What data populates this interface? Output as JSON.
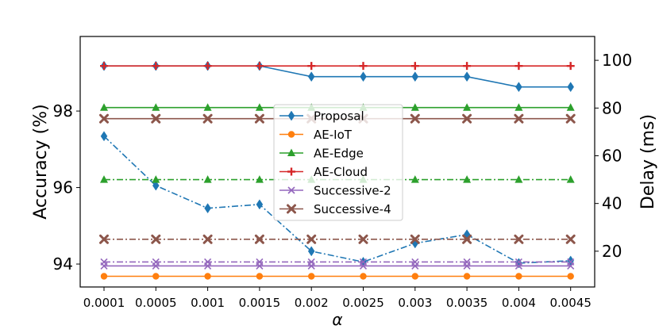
{
  "chart_data": {
    "type": "line",
    "title": "",
    "xlabel": "α",
    "ylabel": "Accuracy (%)",
    "ylabel_right": "Delay (ms)",
    "categories": [
      "0.0001",
      "0.0005",
      "0.001",
      "0.0015",
      "0.002",
      "0.0025",
      "0.003",
      "0.0035",
      "0.004",
      "0.0045"
    ],
    "left_axis": {
      "ylim": [
        93.4,
        99.95
      ],
      "ticks": [
        94,
        96,
        98
      ]
    },
    "right_axis": {
      "ylim": [
        5,
        110
      ],
      "ticks": [
        20,
        40,
        60,
        80,
        100
      ]
    },
    "legend_position": "center",
    "series": [
      {
        "name": "Proposal",
        "color": "#1f77b4",
        "marker": "diamond",
        "axis": "left",
        "linestyle": "solid",
        "values": [
          99.18,
          99.18,
          99.18,
          99.18,
          98.9,
          98.9,
          98.9,
          98.9,
          98.63,
          98.63
        ]
      },
      {
        "name": "AE-IoT",
        "color": "#ff7f0e",
        "marker": "circle",
        "axis": "left",
        "linestyle": "solid",
        "values": [
          93.68,
          93.68,
          93.68,
          93.68,
          93.68,
          93.68,
          93.68,
          93.68,
          93.68,
          93.68
        ]
      },
      {
        "name": "AE-Edge",
        "color": "#2ca02c",
        "marker": "triangle",
        "axis": "left",
        "linestyle": "solid",
        "values": [
          98.09,
          98.09,
          98.09,
          98.09,
          98.09,
          98.09,
          98.09,
          98.09,
          98.09,
          98.09
        ]
      },
      {
        "name": "AE-Cloud",
        "color": "#d62728",
        "marker": "plus",
        "axis": "left",
        "linestyle": "solid",
        "values": [
          99.18,
          99.18,
          99.18,
          99.18,
          99.18,
          99.18,
          99.18,
          99.18,
          99.18,
          99.18
        ]
      },
      {
        "name": "Successive-2",
        "color": "#9467bd",
        "marker": "x",
        "axis": "left",
        "linestyle": "solid",
        "values": [
          93.95,
          93.95,
          93.95,
          93.95,
          93.95,
          93.95,
          93.95,
          93.95,
          93.95,
          93.95
        ]
      },
      {
        "name": "Successive-4",
        "color": "#8c564b",
        "marker": "xfilled",
        "axis": "left",
        "linestyle": "solid",
        "values": [
          97.8,
          97.8,
          97.8,
          97.8,
          97.8,
          97.8,
          97.8,
          97.8,
          97.8,
          97.8
        ]
      },
      {
        "name": "Proposal (delay)",
        "color": "#1f77b4",
        "marker": "diamond",
        "axis": "right",
        "linestyle": "dashdot",
        "values": [
          68.2,
          47.5,
          38.0,
          39.6,
          20.0,
          15.5,
          23.3,
          27.0,
          15.0,
          16.0
        ]
      },
      {
        "name": "AE-Edge (delay)",
        "color": "#2ca02c",
        "marker": "triangle",
        "axis": "right",
        "linestyle": "dashdot",
        "values": [
          50.0,
          50.0,
          50.0,
          50.0,
          50.0,
          50.0,
          50.0,
          50.0,
          50.0,
          50.0
        ]
      },
      {
        "name": "Successive-2 (delay)",
        "color": "#9467bd",
        "marker": "x",
        "axis": "right",
        "linestyle": "dashdot",
        "values": [
          15.5,
          15.5,
          15.5,
          15.5,
          15.5,
          15.5,
          15.5,
          15.5,
          15.5,
          15.5
        ]
      },
      {
        "name": "Successive-4 (delay)",
        "color": "#8c564b",
        "marker": "xfilled",
        "axis": "right",
        "linestyle": "dashdot",
        "values": [
          25.0,
          25.0,
          25.0,
          25.0,
          25.0,
          25.0,
          25.0,
          25.0,
          25.0,
          25.0
        ]
      }
    ],
    "legend": [
      "Proposal",
      "AE-IoT",
      "AE-Edge",
      "AE-Cloud",
      "Successive-2",
      "Successive-4"
    ]
  }
}
